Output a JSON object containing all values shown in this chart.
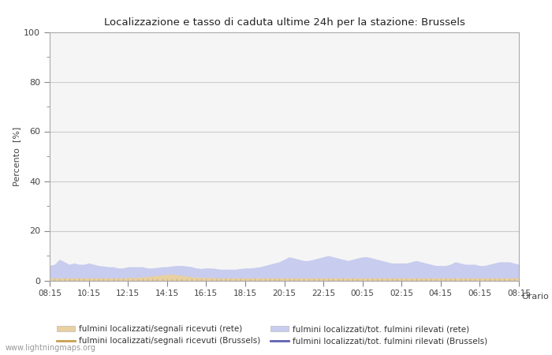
{
  "title": "Localizzazione e tasso di caduta ultime 24h per la stazione: Brussels",
  "ylabel": "Percento  [%]",
  "xlabel": "Orario",
  "watermark": "www.lightningmaps.org",
  "ylim": [
    0,
    100
  ],
  "yticks": [
    0,
    20,
    40,
    60,
    80,
    100
  ],
  "yticks_minor": [
    10,
    30,
    50,
    70,
    90
  ],
  "xtick_labels": [
    "08:15",
    "10:15",
    "12:15",
    "14:15",
    "16:15",
    "18:15",
    "20:15",
    "22:15",
    "00:15",
    "02:15",
    "04:15",
    "06:15",
    "08:15"
  ],
  "background_color": "#ffffff",
  "plot_bg_color": "#f5f5f5",
  "grid_color": "#cccccc",
  "fill_rete_color": "#e8d0a0",
  "fill_brussels_color": "#c8ccee",
  "line_rete_color": "#c8a050",
  "line_brussels_color": "#6060b0",
  "legend_labels": [
    "fulmini localizzati/segnali ricevuti (rete)",
    "fulmini localizzati/segnali ricevuti (Brussels)",
    "fulmini localizzati/tot. fulmini rilevati (rete)",
    "fulmini localizzati/tot. fulmini rilevati (Brussels)"
  ],
  "n_points": 97,
  "rete_fill_values": [
    1.0,
    1.0,
    1.0,
    1.0,
    1.0,
    1.0,
    1.0,
    1.0,
    1.0,
    1.0,
    1.0,
    1.0,
    1.0,
    1.0,
    1.0,
    1.0,
    1.2,
    1.2,
    1.2,
    1.5,
    1.5,
    1.8,
    2.0,
    2.2,
    2.5,
    2.5,
    2.3,
    2.0,
    1.8,
    1.5,
    1.3,
    1.2,
    1.2,
    1.2,
    1.0,
    1.0,
    1.0,
    1.0,
    1.0,
    1.0,
    1.0,
    1.0,
    1.0,
    1.0,
    1.0,
    1.0,
    1.0,
    1.0,
    1.0,
    1.0,
    1.0,
    1.0,
    1.0,
    1.0,
    1.0,
    1.0,
    1.0,
    1.0,
    1.0,
    1.0,
    1.0,
    1.0,
    1.0,
    1.0,
    1.0,
    1.0,
    1.0,
    1.0,
    1.0,
    1.0,
    1.0,
    1.0,
    1.0,
    1.0,
    1.0,
    1.0,
    1.0,
    1.0,
    1.0,
    1.0,
    1.0,
    1.0,
    1.0,
    1.0,
    1.0,
    1.0,
    1.0,
    1.0,
    1.0,
    1.0,
    1.0,
    1.0,
    1.0,
    1.0,
    1.0,
    1.0,
    1.0
  ],
  "brussels_fill_values": [
    6.0,
    6.5,
    8.5,
    7.5,
    6.5,
    7.0,
    6.5,
    6.5,
    7.0,
    6.5,
    6.0,
    5.8,
    5.5,
    5.5,
    5.0,
    5.0,
    5.5,
    5.5,
    5.5,
    5.5,
    5.0,
    5.0,
    5.2,
    5.5,
    5.5,
    5.8,
    6.0,
    6.0,
    5.8,
    5.5,
    5.0,
    4.8,
    5.0,
    5.0,
    4.8,
    4.5,
    4.5,
    4.5,
    4.5,
    4.8,
    5.0,
    5.0,
    5.2,
    5.5,
    6.0,
    6.5,
    7.0,
    7.5,
    8.5,
    9.5,
    9.0,
    8.5,
    8.0,
    8.0,
    8.5,
    9.0,
    9.5,
    10.0,
    9.5,
    9.0,
    8.5,
    8.0,
    8.5,
    9.0,
    9.5,
    9.5,
    9.0,
    8.5,
    8.0,
    7.5,
    7.0,
    7.0,
    7.0,
    7.0,
    7.5,
    8.0,
    7.5,
    7.0,
    6.5,
    6.0,
    6.0,
    6.0,
    6.5,
    7.5,
    7.0,
    6.5,
    6.5,
    6.5,
    6.0,
    6.0,
    6.5,
    7.0,
    7.5,
    7.5,
    7.5,
    7.0,
    6.5
  ]
}
